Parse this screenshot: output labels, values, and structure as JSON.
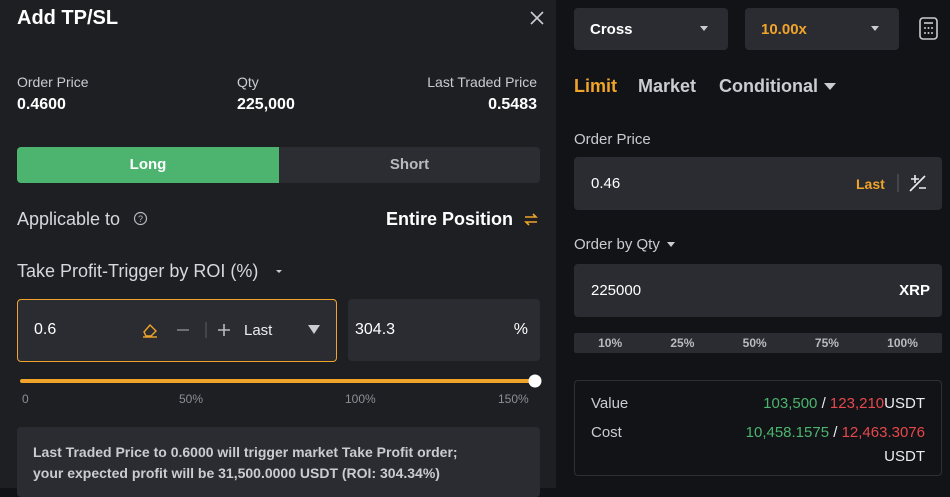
{
  "header": {
    "title": "Add TP/SL"
  },
  "summary": [
    {
      "label": "Order Price",
      "value": "0.4600"
    },
    {
      "label": "Qty",
      "value": "225,000"
    },
    {
      "label": "Last Traded Price",
      "value": "0.5483"
    }
  ],
  "side_tabs": [
    "Long",
    "Short"
  ],
  "applicable": {
    "label": "Applicable to",
    "value": "Entire Position"
  },
  "take_profit": {
    "label": "Take Profit-Trigger by ROI (%)",
    "price": "0.6",
    "trigger": "Last",
    "roi": "304.3",
    "unit": "%"
  },
  "slider_labels": [
    "0",
    "50%",
    "100%",
    "150%"
  ],
  "note": [
    "Last Traded Price to 0.6000 will trigger market Take Profit order;",
    "your expected profit will be 31,500.0000 USDT (ROI: 304.34%)"
  ],
  "order": {
    "margin_mode": "Cross",
    "leverage": "10.00x",
    "tabs": [
      "Limit",
      "Market",
      "Conditional"
    ],
    "price_label": "Order Price",
    "price": "0.46",
    "price_ref": "Last",
    "qty_label": "Order by Qty",
    "qty": "225000",
    "qty_unit": "XRP",
    "percents": [
      "10%",
      "25%",
      "50%",
      "75%",
      "100%"
    ]
  },
  "summary_box": {
    "value_label": "Value",
    "value_buy": "103,500",
    "separator": "/",
    "value_sell": "123,210",
    "cost_label": "Cost",
    "cost_buy": "10,458.1575",
    "cost_sell": "12,463.3076",
    "unit": "USDT"
  }
}
